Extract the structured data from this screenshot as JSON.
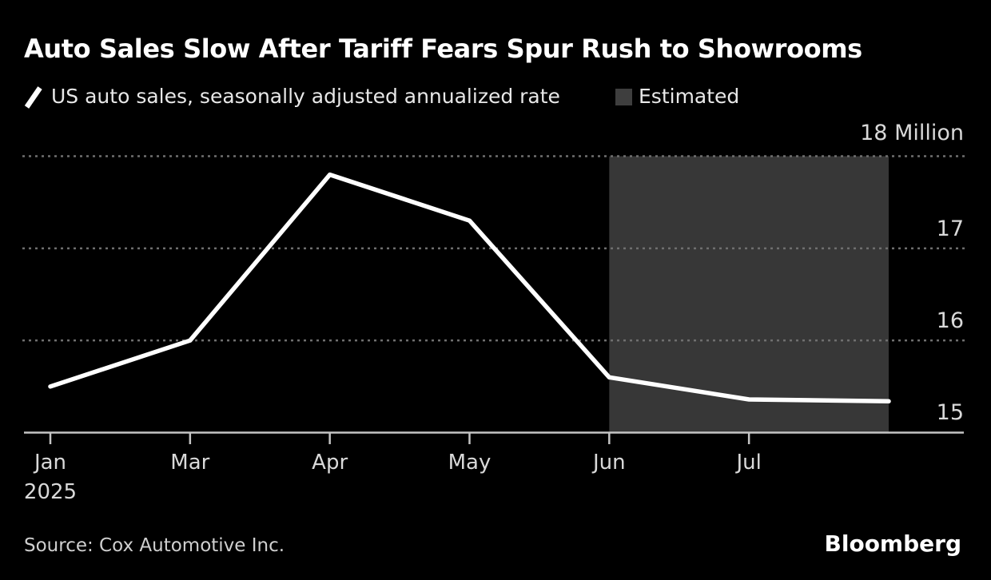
{
  "header": {
    "title": "Auto Sales Slow After Tariff Fears Spur Rush to Showrooms"
  },
  "legend": {
    "series_label": "US auto sales, seasonally adjusted annualized rate",
    "estimated_label": "Estimated"
  },
  "footer": {
    "source": "Source: Cox Automotive Inc.",
    "brand": "Bloomberg"
  },
  "colors": {
    "background": "#000000",
    "line": "#ffffff",
    "estimated_region": "#373737",
    "estimated_swatch": "#3e3e3e",
    "gridline": "#6f6f6f",
    "axis": "#c4c4c4",
    "title_text": "#ffffff",
    "label_text": "#d9d9d9"
  },
  "chart_data": {
    "type": "line",
    "title": "Auto Sales Slow After Tariff Fears Spur Rush to Showrooms",
    "subtitle_legend": "US auto sales, seasonally adjusted annualized rate",
    "unit": "Million",
    "categories": [
      "Jan 2025",
      "Mar",
      "Apr",
      "May",
      "Jun",
      "Jul",
      ""
    ],
    "series": [
      {
        "name": "US auto sales, seasonally adjusted annualized rate",
        "values": [
          15.5,
          16.0,
          17.8,
          17.3,
          15.6,
          15.36,
          15.34
        ]
      }
    ],
    "estimated_start_index": 4,
    "estimated_label": "Estimated",
    "x_tick_labels": [
      "Jan",
      "Mar",
      "Apr",
      "May",
      "Jun",
      "Jul"
    ],
    "x_first_tick_year": "2025",
    "y_tick_labels": [
      "18 Million",
      "17",
      "16",
      "15"
    ],
    "y_gridline_values": [
      18,
      17,
      16
    ],
    "y_axis_value": 15,
    "ylim": [
      15,
      18.35
    ],
    "grid": "horizontal dotted",
    "legend_position": "top-left"
  }
}
